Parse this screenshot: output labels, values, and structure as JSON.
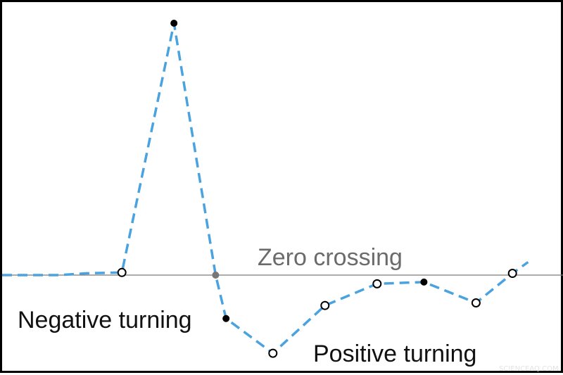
{
  "chart_data": {
    "type": "line",
    "title": "",
    "xlabel": "",
    "ylabel": "",
    "ylim": [
      -1,
      3.15
    ],
    "xlim": [
      0,
      10.6
    ],
    "grid": false,
    "baseline": 0,
    "line_color": "#4aa3df",
    "line_style": "dashed",
    "x": [
      0,
      1.1,
      1.6,
      2.3,
      3.3,
      4.1,
      4.3,
      5.2,
      6.2,
      7.2,
      8.1,
      9.1,
      9.8,
      10.1
    ],
    "y": [
      0,
      0,
      0.02,
      0.03,
      2.9,
      0,
      -0.5,
      -0.9,
      -0.35,
      -0.1,
      -0.08,
      -0.32,
      0.02,
      0.15
    ],
    "markers": [
      {
        "x": 2.3,
        "y": 0.03,
        "style": "open"
      },
      {
        "x": 3.3,
        "y": 2.9,
        "style": "filled"
      },
      {
        "x": 4.1,
        "y": 0,
        "style": "gray"
      },
      {
        "x": 4.3,
        "y": -0.5,
        "style": "filled"
      },
      {
        "x": 5.2,
        "y": -0.9,
        "style": "open"
      },
      {
        "x": 6.2,
        "y": -0.35,
        "style": "open"
      },
      {
        "x": 7.2,
        "y": -0.1,
        "style": "open"
      },
      {
        "x": 8.1,
        "y": -0.08,
        "style": "filled"
      },
      {
        "x": 9.1,
        "y": -0.32,
        "style": "open"
      },
      {
        "x": 9.8,
        "y": 0.02,
        "style": "open"
      }
    ],
    "annotations": {
      "zero_crossing": "Zero crossing",
      "negative_turning": "Negative turning",
      "positive_turning": "Positive turning"
    }
  },
  "watermark": "SCIENCEAQ.COM"
}
